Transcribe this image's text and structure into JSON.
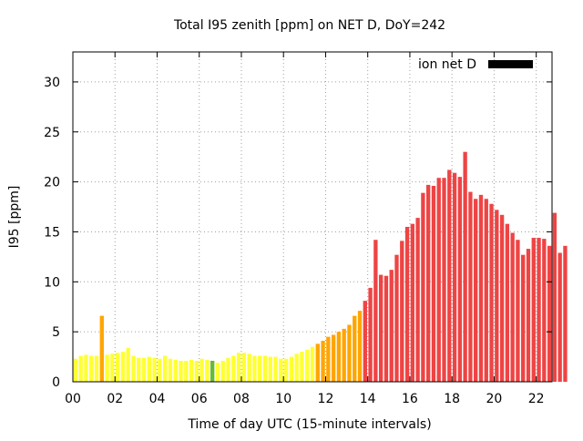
{
  "chart_data": {
    "type": "bar",
    "title": "Total I95 zenith [ppm] on NET D, DoY=242",
    "xlabel": "Time of day UTC (15-minute intervals)",
    "ylabel": "I95 [ppm]",
    "xlim": [
      0,
      22.75
    ],
    "ylim": [
      0,
      33
    ],
    "xticks": [
      "00",
      "02",
      "04",
      "06",
      "08",
      "10",
      "12",
      "14",
      "16",
      "18",
      "20",
      "22"
    ],
    "yticks": [
      "0",
      "5",
      "10",
      "15",
      "20",
      "25",
      "30"
    ],
    "grid": true,
    "legend": {
      "position": "top-right",
      "label": "ion net D",
      "color": "#000000"
    },
    "colors": {
      "yellow": "#ffff33",
      "orange": "#ffa500",
      "red": "#ee4444",
      "green": "#66bb33"
    },
    "series": [
      {
        "bin_hours": 0.25,
        "values": [
          2.3,
          2.6,
          2.7,
          2.6,
          2.6,
          6.6,
          2.7,
          2.8,
          2.9,
          3.0,
          3.4,
          2.6,
          2.4,
          2.4,
          2.5,
          2.4,
          2.3,
          2.6,
          2.3,
          2.2,
          2.1,
          2.1,
          2.2,
          2.1,
          2.3,
          2.2,
          2.1,
          1.9,
          2.1,
          2.4,
          2.6,
          2.9,
          2.9,
          2.8,
          2.6,
          2.6,
          2.6,
          2.5,
          2.5,
          2.3,
          2.3,
          2.5,
          2.8,
          3.0,
          3.2,
          3.5,
          3.8,
          4.1,
          4.5,
          4.7,
          5.0,
          5.3,
          5.7,
          6.6,
          7.1,
          8.1,
          9.4,
          14.2,
          10.7,
          10.6,
          11.2,
          12.7,
          14.1,
          15.5,
          15.8,
          16.4,
          18.9,
          19.7,
          19.6,
          20.4,
          20.4,
          21.2,
          20.9,
          20.5,
          23.0,
          19.0,
          18.3,
          18.7,
          18.3,
          17.8,
          17.2,
          16.7,
          15.8,
          14.9,
          14.2,
          12.7,
          13.3,
          14.4,
          14.4,
          14.3,
          13.6,
          16.9,
          12.9,
          13.6
        ],
        "colors": [
          "yellow",
          "yellow",
          "yellow",
          "yellow",
          "yellow",
          "orange",
          "yellow",
          "yellow",
          "yellow",
          "yellow",
          "yellow",
          "yellow",
          "yellow",
          "yellow",
          "yellow",
          "yellow",
          "yellow",
          "yellow",
          "yellow",
          "yellow",
          "yellow",
          "yellow",
          "yellow",
          "yellow",
          "yellow",
          "yellow",
          "green",
          "yellow",
          "yellow",
          "yellow",
          "yellow",
          "yellow",
          "yellow",
          "yellow",
          "yellow",
          "yellow",
          "yellow",
          "yellow",
          "yellow",
          "yellow",
          "yellow",
          "yellow",
          "yellow",
          "yellow",
          "yellow",
          "yellow",
          "orange",
          "orange",
          "orange",
          "orange",
          "orange",
          "orange",
          "orange",
          "orange",
          "orange",
          "red",
          "red",
          "red",
          "red",
          "red",
          "red",
          "red",
          "red",
          "red",
          "red",
          "red",
          "red",
          "red",
          "red",
          "red",
          "red",
          "red",
          "red",
          "red",
          "red",
          "red",
          "red",
          "red",
          "red",
          "red",
          "red",
          "red",
          "red",
          "red",
          "red",
          "red",
          "red",
          "red",
          "red",
          "red",
          "red",
          "red",
          "red",
          "red"
        ]
      }
    ]
  }
}
